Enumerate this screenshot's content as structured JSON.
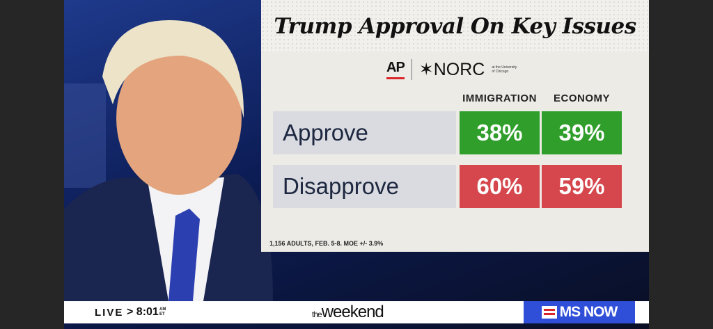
{
  "graphic": {
    "title": "Trump Approval On Key Issues",
    "logos": {
      "ap": "AP",
      "norc": "✶NORC",
      "norc_sub": "at the University of Chicago"
    },
    "columns": [
      "IMMIGRATION",
      "ECONOMY"
    ],
    "rows": [
      {
        "label": "Approve",
        "values": [
          "38%",
          "39%"
        ]
      },
      {
        "label": "Disapprove",
        "values": [
          "60%",
          "59%"
        ]
      }
    ],
    "footnote": "1,156 ADULTS, FEB. 5-8. MOE +/- 3.9%"
  },
  "ticker": {
    "live": "LIVE",
    "time": "> 8:01",
    "ampm": "AM",
    "tz": "ET",
    "show_prefix": "the",
    "show_name": "weekend",
    "network": "MS NOW"
  },
  "colors": {
    "approve": "#2f9e2a",
    "disapprove": "#d5474c",
    "network": "#2f4fd8"
  }
}
